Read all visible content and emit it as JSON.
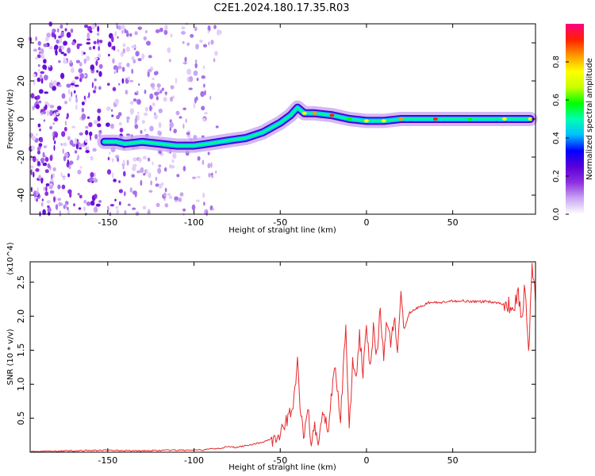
{
  "title": "C2E1.2024.180.17.35.R03",
  "chart_data": [
    {
      "type": "heatmap",
      "xlabel": "Height of straight line (km)",
      "ylabel": "Frequency (Hz)",
      "xlim": [
        -195,
        98
      ],
      "ylim": [
        -50,
        50
      ],
      "x_ticks": [
        -150,
        -100,
        -50,
        0,
        50
      ],
      "x_tick_labels": [
        "-150",
        "-100",
        "-50",
        "0",
        "50"
      ],
      "y_ticks": [
        -40,
        -20,
        0,
        20,
        40
      ],
      "y_tick_labels": [
        "-40",
        "-20",
        "0",
        "20",
        "40"
      ],
      "colorbar": {
        "label": "Normalized spectral amplitude",
        "range": [
          0,
          1
        ],
        "ticks": [
          0.0,
          0.2,
          0.4,
          0.6,
          0.8
        ],
        "tick_labels": [
          "0.0",
          "0.2",
          "0.4",
          "0.6",
          "0.8"
        ],
        "colors": [
          "#ffffff",
          "#c9a6f2",
          "#8e2fe0",
          "#5a00d8",
          "#0000ff",
          "#00c0ff",
          "#00ffb0",
          "#00ff00",
          "#c8ff00",
          "#ffff00",
          "#ff9900",
          "#ff2200",
          "#ff0080"
        ]
      },
      "ridge": {
        "x": [
          -152,
          -145,
          -140,
          -130,
          -120,
          -110,
          -100,
          -92,
          -85,
          -78,
          -70,
          -60,
          -50,
          -44,
          -40,
          -36,
          -30,
          -20,
          -10,
          0,
          10,
          20,
          40,
          60,
          80,
          95
        ],
        "y": [
          -12,
          -12,
          -13,
          -12,
          -13,
          -14,
          -14,
          -13,
          -12,
          -11,
          -10,
          -7,
          -2,
          2,
          6,
          3,
          3,
          2,
          0,
          -1,
          -1,
          0,
          0,
          0,
          0,
          0
        ]
      },
      "noise_region_x": [
        -195,
        -85
      ]
    },
    {
      "type": "line",
      "xlabel": "Height of straight line (km)",
      "ylabel": "SNR (10 * v/v)",
      "y_multiplier": "(x10^4)",
      "xlim": [
        -195,
        98
      ],
      "ylim": [
        0,
        2.8
      ],
      "x_ticks": [
        -150,
        -100,
        -50,
        0,
        50
      ],
      "x_tick_labels": [
        "-150",
        "-100",
        "-50",
        "0",
        "50"
      ],
      "y_ticks": [
        0.5,
        1.0,
        1.5,
        2.0,
        2.5
      ],
      "y_tick_labels": [
        "0.5",
        "1.0",
        "1.5",
        "2.0",
        "2.5"
      ],
      "line_color": "#e8292b",
      "series": [
        {
          "x": [
            -195,
            -170,
            -150,
            -130,
            -110,
            -95,
            -90,
            -85,
            -80,
            -75,
            -70,
            -65,
            -60,
            -55,
            -50,
            -47,
            -44,
            -42,
            -40,
            -38,
            -36,
            -34,
            -32,
            -30,
            -28,
            -25,
            -22,
            -20,
            -18,
            -15,
            -12,
            -10,
            -8,
            -6,
            -4,
            -2,
            0,
            2,
            4,
            6,
            8,
            10,
            12,
            14,
            16,
            18,
            20,
            22,
            25,
            28,
            32,
            36,
            40,
            45,
            50,
            55,
            60,
            65,
            70,
            75,
            80,
            85,
            88,
            90,
            92,
            94,
            96,
            98
          ],
          "values": [
            0.01,
            0.02,
            0.03,
            0.02,
            0.03,
            0.03,
            0.05,
            0.06,
            0.08,
            0.07,
            0.1,
            0.12,
            0.15,
            0.2,
            0.25,
            0.4,
            0.6,
            0.8,
            1.3,
            0.5,
            0.2,
            0.7,
            0.1,
            0.4,
            0.1,
            0.6,
            0.3,
            0.9,
            1.2,
            0.5,
            1.9,
            0.3,
            1.4,
            1.1,
            1.7,
            1.2,
            1.9,
            1.3,
            1.8,
            1.4,
            2.1,
            1.4,
            1.95,
            1.6,
            2.0,
            1.5,
            2.3,
            1.8,
            2.05,
            2.1,
            2.15,
            2.2,
            2.2,
            2.2,
            2.22,
            2.23,
            2.22,
            2.21,
            2.22,
            2.2,
            2.18,
            2.15,
            2.3,
            2.0,
            2.45,
            1.4,
            2.8,
            2.2
          ]
        }
      ]
    }
  ]
}
